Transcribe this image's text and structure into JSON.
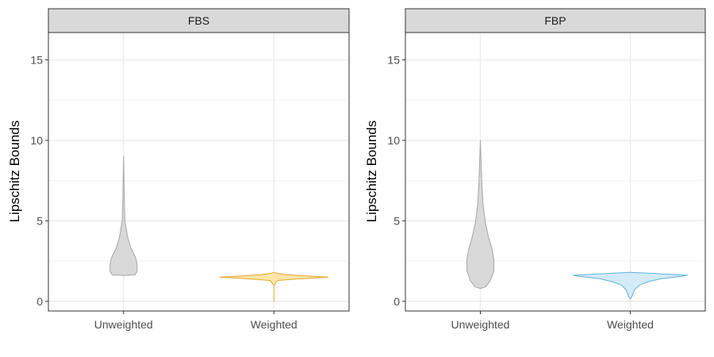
{
  "chart_data": [
    {
      "type": "violin",
      "facet_label": "FBS",
      "ylabel": "Lipschitz Bounds",
      "xlabel": "",
      "categories": [
        "Unweighted",
        "Weighted"
      ],
      "ylim": [
        -0.6,
        16.7
      ],
      "yticks": [
        0,
        5,
        10,
        15
      ],
      "grid": true,
      "legend": "none",
      "series": [
        {
          "category": "Unweighted",
          "fill": "#d9d9d9",
          "stroke": "#a6a6a6",
          "profile": [
            {
              "y": 1.6,
              "w": 0.0
            },
            {
              "y": 1.65,
              "w": 0.17
            },
            {
              "y": 1.85,
              "w": 0.2
            },
            {
              "y": 2.3,
              "w": 0.2
            },
            {
              "y": 2.7,
              "w": 0.18
            },
            {
              "y": 3.3,
              "w": 0.11
            },
            {
              "y": 4.0,
              "w": 0.06
            },
            {
              "y": 5.0,
              "w": 0.02
            },
            {
              "y": 6.5,
              "w": 0.01
            },
            {
              "y": 9.0,
              "w": 0.0
            }
          ]
        },
        {
          "category": "Weighted",
          "fill": "#fbe5a8",
          "stroke": "#e0a82e",
          "profile": [
            {
              "y": 0.0,
              "w": 0.0
            },
            {
              "y": 1.0,
              "w": 0.0
            },
            {
              "y": 1.3,
              "w": 0.06
            },
            {
              "y": 1.4,
              "w": 0.4
            },
            {
              "y": 1.5,
              "w": 0.8
            },
            {
              "y": 1.55,
              "w": 0.6
            },
            {
              "y": 1.65,
              "w": 0.2
            },
            {
              "y": 1.75,
              "w": 0.04
            },
            {
              "y": 1.8,
              "w": 0.0
            }
          ]
        }
      ]
    },
    {
      "type": "violin",
      "facet_label": "FBP",
      "ylabel": "Lipschitz Bounds",
      "xlabel": "",
      "categories": [
        "Unweighted",
        "Weighted"
      ],
      "ylim": [
        -0.6,
        16.7
      ],
      "yticks": [
        0,
        5,
        10,
        15
      ],
      "grid": true,
      "legend": "none",
      "series": [
        {
          "category": "Unweighted",
          "fill": "#d9d9d9",
          "stroke": "#a6a6a6",
          "profile": [
            {
              "y": 0.8,
              "w": 0.0
            },
            {
              "y": 0.9,
              "w": 0.08
            },
            {
              "y": 1.3,
              "w": 0.15
            },
            {
              "y": 1.9,
              "w": 0.2
            },
            {
              "y": 2.6,
              "w": 0.2
            },
            {
              "y": 3.3,
              "w": 0.17
            },
            {
              "y": 4.0,
              "w": 0.12
            },
            {
              "y": 5.0,
              "w": 0.07
            },
            {
              "y": 6.0,
              "w": 0.04
            },
            {
              "y": 7.5,
              "w": 0.02
            },
            {
              "y": 10.0,
              "w": 0.0
            }
          ]
        },
        {
          "category": "Weighted",
          "fill": "#d4eaf7",
          "stroke": "#5fb3dc",
          "profile": [
            {
              "y": 0.15,
              "w": 0.0
            },
            {
              "y": 0.35,
              "w": 0.03
            },
            {
              "y": 0.7,
              "w": 0.06
            },
            {
              "y": 1.0,
              "w": 0.13
            },
            {
              "y": 1.2,
              "w": 0.25
            },
            {
              "y": 1.4,
              "w": 0.45
            },
            {
              "y": 1.55,
              "w": 0.75
            },
            {
              "y": 1.62,
              "w": 0.85
            },
            {
              "y": 1.72,
              "w": 0.4
            },
            {
              "y": 1.8,
              "w": 0.0
            }
          ]
        }
      ]
    }
  ]
}
